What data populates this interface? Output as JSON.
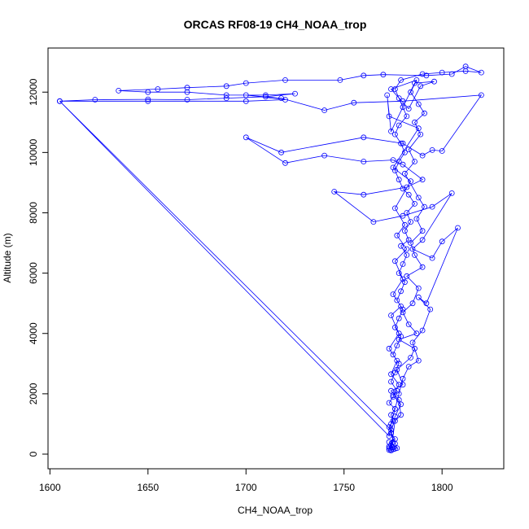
{
  "chart_data": {
    "type": "line",
    "title": "ORCAS RF08-19 CH4_NOAA_trop",
    "xlabel": "CH4_NOAA_trop",
    "ylabel": "Altitude (m)",
    "xlim": [
      1604,
      1824
    ],
    "ylim": [
      0,
      12950
    ],
    "x_ticks": [
      1600,
      1650,
      1700,
      1750,
      1800
    ],
    "y_ticks": [
      0,
      2000,
      4000,
      6000,
      8000,
      10000,
      12000
    ],
    "grid": false,
    "legend": "none",
    "marker": "open-circle",
    "series": [
      {
        "color": "#0000ff",
        "points": [
          [
            1774,
            150
          ],
          [
            1773,
            200
          ],
          [
            1774,
            300
          ],
          [
            1775,
            220
          ],
          [
            1773,
            400
          ],
          [
            1776,
            500
          ],
          [
            1774,
            700
          ],
          [
            1773,
            900
          ],
          [
            1775,
            1100
          ],
          [
            1774,
            1300
          ],
          [
            1776,
            1500
          ],
          [
            1773,
            1700
          ],
          [
            1775,
            1900
          ],
          [
            1777,
            2100
          ],
          [
            1774,
            2400
          ],
          [
            1776,
            2700
          ],
          [
            1778,
            3000
          ],
          [
            1775,
            3300
          ],
          [
            1777,
            3600
          ],
          [
            1779,
            3900
          ],
          [
            1776,
            4200
          ],
          [
            1778,
            4500
          ],
          [
            1780,
            4800
          ],
          [
            1777,
            5100
          ],
          [
            1779,
            5400
          ],
          [
            1781,
            5700
          ],
          [
            1778,
            6000
          ],
          [
            1780,
            6300
          ],
          [
            1782,
            6600
          ],
          [
            1779,
            6900
          ],
          [
            1783,
            7100
          ],
          [
            1781,
            7400
          ],
          [
            1784,
            7700
          ],
          [
            1782,
            8000
          ],
          [
            1786,
            8300
          ],
          [
            1783,
            8600
          ],
          [
            1780,
            8800
          ],
          [
            1778,
            9100
          ],
          [
            1776,
            9400
          ],
          [
            1778,
            9700
          ],
          [
            1781,
            10000
          ],
          [
            1779,
            10300
          ],
          [
            1776,
            10600
          ],
          [
            1778,
            10900
          ],
          [
            1782,
            11200
          ],
          [
            1780,
            11500
          ],
          [
            1778,
            11800
          ],
          [
            1776,
            12100
          ],
          [
            1779,
            12400
          ],
          [
            1790,
            12600
          ],
          [
            1800,
            12650
          ],
          [
            1812,
            12700
          ],
          [
            1820,
            12650
          ],
          [
            1812,
            12850
          ],
          [
            1805,
            12600
          ],
          [
            1792,
            12550
          ],
          [
            1770,
            12580
          ],
          [
            1760,
            12550
          ],
          [
            1748,
            12400
          ],
          [
            1720,
            12400
          ],
          [
            1700,
            12300
          ],
          [
            1690,
            12200
          ],
          [
            1670,
            12150
          ],
          [
            1655,
            12100
          ],
          [
            1635,
            12050
          ],
          [
            1650,
            12000
          ],
          [
            1670,
            12000
          ],
          [
            1690,
            11900
          ],
          [
            1710,
            11900
          ],
          [
            1725,
            11950
          ],
          [
            1710,
            11850
          ],
          [
            1690,
            11800
          ],
          [
            1670,
            11750
          ],
          [
            1650,
            11760
          ],
          [
            1623,
            11750
          ],
          [
            1605,
            11700
          ],
          [
            1650,
            11700
          ],
          [
            1700,
            11700
          ],
          [
            1720,
            11750
          ],
          [
            1700,
            11900
          ],
          [
            1718,
            11800
          ],
          [
            1740,
            11400
          ],
          [
            1755,
            11650
          ],
          [
            1780,
            11700
          ],
          [
            1820,
            11900
          ],
          [
            1800,
            10050
          ],
          [
            1795,
            10080
          ],
          [
            1790,
            9900
          ],
          [
            1780,
            10300
          ],
          [
            1760,
            10500
          ],
          [
            1718,
            10000
          ],
          [
            1700,
            10500
          ],
          [
            1720,
            9650
          ],
          [
            1740,
            9900
          ],
          [
            1760,
            9700
          ],
          [
            1775,
            9750
          ],
          [
            1780,
            9600
          ],
          [
            1790,
            9100
          ],
          [
            1782,
            8850
          ],
          [
            1760,
            8600
          ],
          [
            1745,
            8700
          ],
          [
            1765,
            7700
          ],
          [
            1780,
            7900
          ],
          [
            1795,
            8200
          ],
          [
            1805,
            8650
          ],
          [
            1790,
            7100
          ],
          [
            1785,
            6800
          ],
          [
            1795,
            6500
          ],
          [
            1800,
            7050
          ],
          [
            1808,
            7500
          ],
          [
            1792,
            5000
          ],
          [
            1788,
            5200
          ],
          [
            1794,
            4800
          ],
          [
            1790,
            4100
          ],
          [
            1785,
            3700
          ],
          [
            1788,
            3100
          ],
          [
            1783,
            2900
          ],
          [
            1780,
            2500
          ],
          [
            1778,
            2000
          ],
          [
            1776,
            1500
          ],
          [
            1774,
            1000
          ],
          [
            1773,
            600
          ],
          [
            1605,
            11700
          ],
          [
            1774,
            800
          ],
          [
            1775,
            400
          ],
          [
            1773,
            250
          ],
          [
            1776,
            180
          ],
          [
            1774,
            120
          ],
          [
            1776,
            1100
          ],
          [
            1779,
            1300
          ],
          [
            1778,
            1800
          ],
          [
            1774,
            2100
          ],
          [
            1780,
            2300
          ],
          [
            1777,
            2800
          ],
          [
            1784,
            3200
          ],
          [
            1786,
            3500
          ],
          [
            1778,
            3800
          ],
          [
            1787,
            4000
          ],
          [
            1783,
            4300
          ],
          [
            1780,
            4700
          ],
          [
            1785,
            5000
          ],
          [
            1788,
            5500
          ],
          [
            1782,
            5900
          ],
          [
            1790,
            6200
          ],
          [
            1786,
            6600
          ],
          [
            1784,
            7000
          ],
          [
            1790,
            7400
          ],
          [
            1787,
            7800
          ],
          [
            1791,
            8200
          ],
          [
            1788,
            8500
          ],
          [
            1781,
            9300
          ],
          [
            1786,
            9700
          ],
          [
            1783,
            10100
          ],
          [
            1789,
            10600
          ],
          [
            1786,
            11000
          ],
          [
            1791,
            11300
          ],
          [
            1788,
            11600
          ],
          [
            1784,
            12000
          ],
          [
            1787,
            12400
          ],
          [
            1774,
            12100
          ],
          [
            1783,
            11450
          ],
          [
            1789,
            12200
          ],
          [
            1796,
            12350
          ],
          [
            1786,
            12300
          ],
          [
            1774,
            10700
          ],
          [
            1772,
            11900
          ],
          [
            1773,
            11200
          ],
          [
            1788,
            10800
          ],
          [
            1775,
            9500
          ],
          [
            1784,
            9050
          ],
          [
            1776,
            8150
          ],
          [
            1781,
            7600
          ],
          [
            1777,
            7250
          ],
          [
            1782,
            6800
          ],
          [
            1776,
            6400
          ],
          [
            1780,
            5800
          ],
          [
            1775,
            5300
          ],
          [
            1779,
            4900
          ],
          [
            1774,
            4600
          ],
          [
            1778,
            4000
          ],
          [
            1773,
            3500
          ],
          [
            1777,
            3100
          ],
          [
            1774,
            2650
          ],
          [
            1778,
            2300
          ],
          [
            1775,
            1950
          ],
          [
            1779,
            1650
          ],
          [
            1776,
            1250
          ],
          [
            1774,
            700
          ],
          [
            1776,
            350
          ],
          [
            1777,
            200
          ],
          [
            1775,
            160
          ],
          [
            1773,
            140
          ]
        ]
      }
    ]
  }
}
